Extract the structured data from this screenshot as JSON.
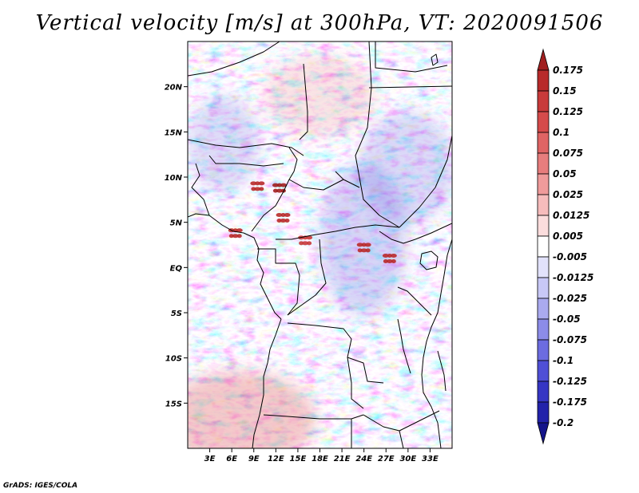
{
  "title": "Vertical velocity [m/s] at 300hPa, VT: 2020091506",
  "credit": "GrADS: IGES/COLA",
  "chart_data": {
    "type": "heatmap",
    "title": "Vertical velocity [m/s] at 300hPa, VT: 2020091506",
    "variable": "Vertical velocity",
    "units": "m/s",
    "level": "300hPa",
    "valid_time": "2020091506",
    "lon_range": [
      0,
      36
    ],
    "lat_range": [
      -20,
      25
    ],
    "x_ticks": [
      {
        "value": 3,
        "label": "3E"
      },
      {
        "value": 6,
        "label": "6E"
      },
      {
        "value": 9,
        "label": "9E"
      },
      {
        "value": 12,
        "label": "12E"
      },
      {
        "value": 15,
        "label": "15E"
      },
      {
        "value": 18,
        "label": "18E"
      },
      {
        "value": 21,
        "label": "21E"
      },
      {
        "value": 24,
        "label": "24E"
      },
      {
        "value": 27,
        "label": "27E"
      },
      {
        "value": 30,
        "label": "30E"
      },
      {
        "value": 33,
        "label": "33E"
      }
    ],
    "y_ticks": [
      {
        "value": 20,
        "label": "20N"
      },
      {
        "value": 15,
        "label": "15N"
      },
      {
        "value": 10,
        "label": "10N"
      },
      {
        "value": 5,
        "label": "5N"
      },
      {
        "value": 0,
        "label": "EQ"
      },
      {
        "value": -5,
        "label": "5S"
      },
      {
        "value": -10,
        "label": "10S"
      },
      {
        "value": -15,
        "label": "15S"
      }
    ],
    "colorbar": {
      "labels": [
        "0.175",
        "0.15",
        "0.125",
        "0.1",
        "0.075",
        "0.05",
        "0.025",
        "0.0125",
        "0.005",
        "-0.005",
        "-0.0125",
        "-0.025",
        "-0.05",
        "-0.075",
        "-0.1",
        "-0.125",
        "-0.175",
        "-0.2"
      ],
      "colors": [
        "#a11f1f",
        "#b82a2a",
        "#c83a3a",
        "#d54b4b",
        "#df6464",
        "#e77d7d",
        "#ef9b9b",
        "#f6bcbc",
        "#fbdddd",
        "#ffffff",
        "#e2e2fb",
        "#c8c8f6",
        "#aaaaef",
        "#8c8ce8",
        "#6c6ce0",
        "#4f4fd6",
        "#3636c4",
        "#2222aa",
        "#14148a"
      ]
    },
    "hotspots": [
      {
        "lon": 9.5,
        "lat": 9.0,
        "value": 0.15
      },
      {
        "lon": 12.5,
        "lat": 8.8,
        "value": 0.175
      },
      {
        "lon": 13.0,
        "lat": 5.5,
        "value": 0.15
      },
      {
        "lon": 6.5,
        "lat": 3.8,
        "value": 0.15
      },
      {
        "lon": 24.0,
        "lat": 2.2,
        "value": 0.15
      },
      {
        "lon": 27.5,
        "lat": 1.0,
        "value": 0.15
      },
      {
        "lon": 16.0,
        "lat": 3.0,
        "value": 0.125
      }
    ]
  }
}
